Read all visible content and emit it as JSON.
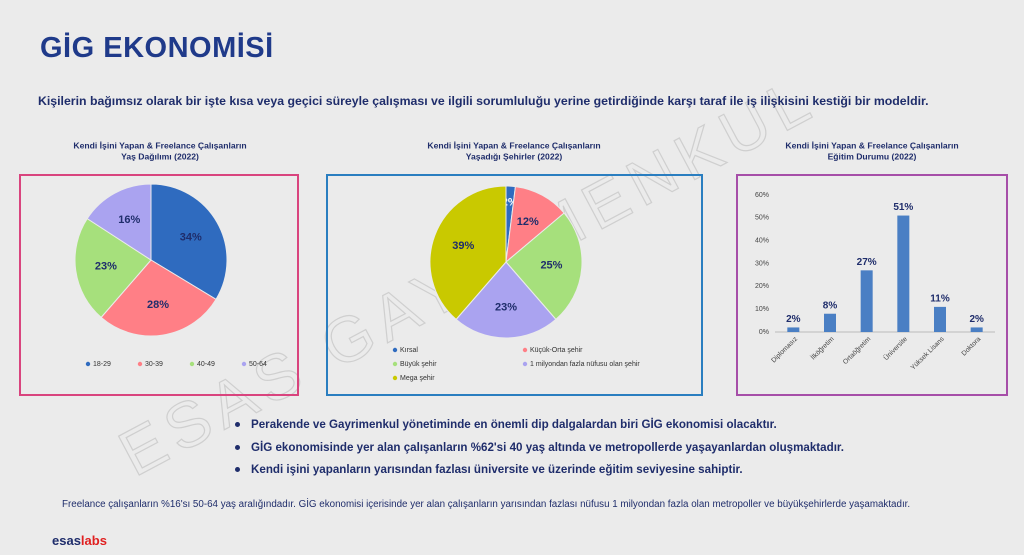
{
  "title": "GİG EKONOMİSİ",
  "subtitle": "Kişilerin bağımsız olarak bir işte kısa veya geçici süreyle çalışması ve ilgili sorumluluğu yerine getirdiğinde karşı taraf ile iş ilişkisini kestiği bir modeldir.",
  "watermark": "ESAS GAYRİMENKUL",
  "chart_data": [
    {
      "type": "pie",
      "title": [
        "Kendi İşini Yapan & Freelance Çalışanların",
        "Yaş Dağılımı (2022)"
      ],
      "categories": [
        "18-29",
        "30-39",
        "40-49",
        "50-64"
      ],
      "values": [
        34,
        28,
        23,
        16
      ],
      "value_labels": [
        "34%",
        "28%",
        "23%",
        "16%"
      ],
      "colors": [
        "#2f6bbf",
        "#ff7f86",
        "#a6e07c",
        "#aaa3f0"
      ]
    },
    {
      "type": "pie",
      "title": [
        "Kendi İşini Yapan & Freelance Çalışanların",
        "Yaşadığı Şehirler (2022)"
      ],
      "categories": [
        "Kırsal",
        "Küçük-Orta şehir",
        "Büyük şehir",
        "1 milyondan fazla nüfusu olan şehir",
        "Mega şehir"
      ],
      "values": [
        2,
        12,
        25,
        23,
        39
      ],
      "value_labels": [
        "2%",
        "12%",
        "25%",
        "23%",
        "39%"
      ],
      "colors": [
        "#2f6bbf",
        "#ff7f86",
        "#a6e07c",
        "#aaa3f0",
        "#c9c900"
      ]
    },
    {
      "type": "bar",
      "title": [
        "Kendi İşini Yapan & Freelance Çalışanların",
        "Eğitim Durumu (2022)"
      ],
      "categories": [
        "Diplomasız",
        "İlköğretim",
        "Ortaöğretim",
        "Üniversite",
        "Yüksek Lisans",
        "Doktora"
      ],
      "values": [
        2,
        8,
        27,
        51,
        11,
        2
      ],
      "value_labels": [
        "2%",
        "8%",
        "27%",
        "51%",
        "11%",
        "2%"
      ],
      "color": "#4a7fc4",
      "ylim": [
        0,
        60
      ],
      "yticks": [
        {
          "value": 0,
          "label": "0%"
        },
        {
          "value": 10,
          "label": "10%"
        },
        {
          "value": 20,
          "label": "20%"
        },
        {
          "value": 30,
          "label": "30%"
        },
        {
          "value": 40,
          "label": "40%"
        },
        {
          "value": 50,
          "label": "50%"
        },
        {
          "value": 60,
          "label": "60%"
        }
      ],
      "grid": false
    }
  ],
  "bullets": [
    "Perakende ve Gayrimenkul yönetiminde en önemli dip dalgalardan biri GİG ekonomisi olacaktır.",
    "GİG ekonomisinde yer alan çalışanların %62'si 40 yaş altında ve metropollerde yaşayanlardan oluşmaktadır.",
    "Kendi işini yapanların yarısından fazlası üniversite ve üzerinde eğitim seviyesine sahiptir."
  ],
  "footer": "Freelance çalışanların %16'sı 50-64 yaş aralığındadır. GİG ekonomisi içerisinde yer alan çalışanların yarısından fazlası nüfusu 1 milyondan fazla olan metropoller ve büyükşehirlerde yaşamaktadır.",
  "logo": {
    "part1": "esas",
    "part2": "labs"
  }
}
